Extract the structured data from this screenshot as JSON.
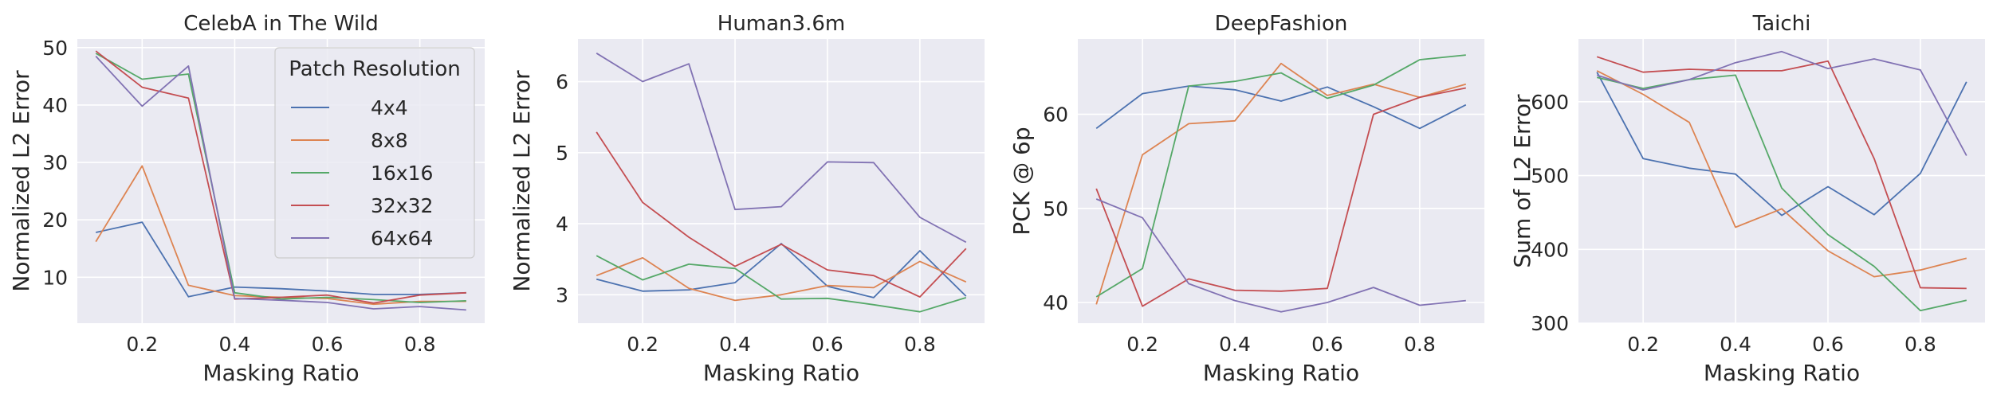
{
  "figure": {
    "legend_location": "top-right (first panel)"
  },
  "palette": {
    "4x4": "#4c72b0",
    "8x8": "#dd8452",
    "16x16": "#55a868",
    "32x32": "#c44e52",
    "64x64": "#8172b3",
    "panel_bg": "#eaeaf2",
    "grid": "#ffffff"
  },
  "chart_data": [
    {
      "type": "line",
      "title": "CelebA in The Wild",
      "xlabel": "Masking Ratio",
      "ylabel": "Normalized L2 Error",
      "xlim": [
        0.06,
        0.94
      ],
      "ylim": [
        2,
        51.5
      ],
      "xticks": [
        0.2,
        0.4,
        0.6,
        0.8
      ],
      "xtick_labels": [
        "0.2",
        "0.4",
        "0.6",
        "0.8"
      ],
      "yticks": [
        10,
        20,
        30,
        40,
        50
      ],
      "ytick_labels": [
        "10",
        "20",
        "30",
        "40",
        "50"
      ],
      "legend": {
        "title": "Patch Resolution",
        "entries": [
          "4x4",
          "8x8",
          "16x16",
          "32x32",
          "64x64"
        ]
      },
      "x": [
        0.1,
        0.2,
        0.3,
        0.4,
        0.5,
        0.6,
        0.7,
        0.8,
        0.9
      ],
      "series": [
        {
          "name": "4x4",
          "values": [
            17.8,
            19.6,
            6.6,
            8.3,
            8.0,
            7.6,
            7.0,
            7.0,
            7.3
          ]
        },
        {
          "name": "8x8",
          "values": [
            16.2,
            29.4,
            8.6,
            6.8,
            6.5,
            6.3,
            5.3,
            5.8,
            5.8
          ]
        },
        {
          "name": "16x16",
          "values": [
            49.0,
            44.5,
            45.4,
            7.3,
            6.2,
            6.5,
            6.1,
            5.6,
            5.9
          ]
        },
        {
          "name": "32x32",
          "values": [
            49.4,
            43.1,
            41.2,
            6.2,
            6.5,
            6.9,
            5.5,
            6.9,
            7.3
          ]
        },
        {
          "name": "64x64",
          "values": [
            48.5,
            39.8,
            46.8,
            6.3,
            6.0,
            5.6,
            4.5,
            4.9,
            4.3
          ]
        }
      ]
    },
    {
      "type": "line",
      "title": "Human3.6m",
      "xlabel": "Masking Ratio",
      "ylabel": "Normalized L2 Error",
      "xlim": [
        0.06,
        0.94
      ],
      "ylim": [
        2.6,
        6.6
      ],
      "xticks": [
        0.2,
        0.4,
        0.6,
        0.8
      ],
      "xtick_labels": [
        "0.2",
        "0.4",
        "0.6",
        "0.8"
      ],
      "yticks": [
        3,
        4,
        5,
        6
      ],
      "ytick_labels": [
        "3",
        "4",
        "5",
        "6"
      ],
      "x": [
        0.1,
        0.2,
        0.3,
        0.4,
        0.5,
        0.6,
        0.7,
        0.8,
        0.9
      ],
      "series": [
        {
          "name": "4x4",
          "values": [
            3.22,
            3.05,
            3.07,
            3.17,
            3.72,
            3.12,
            2.96,
            3.62,
            2.98
          ]
        },
        {
          "name": "8x8",
          "values": [
            3.27,
            3.52,
            3.09,
            2.92,
            3.0,
            3.13,
            3.1,
            3.47,
            3.18
          ]
        },
        {
          "name": "16x16",
          "values": [
            3.55,
            3.21,
            3.43,
            3.37,
            2.94,
            2.95,
            2.86,
            2.76,
            2.96
          ]
        },
        {
          "name": "32x32",
          "values": [
            5.29,
            4.3,
            3.81,
            3.4,
            3.71,
            3.35,
            3.27,
            2.97,
            3.65
          ]
        },
        {
          "name": "64x64",
          "values": [
            6.4,
            6.0,
            6.25,
            4.2,
            4.24,
            4.87,
            4.86,
            4.09,
            3.74
          ]
        }
      ]
    },
    {
      "type": "line",
      "title": "DeepFashion",
      "xlabel": "Masking Ratio",
      "ylabel": "PCK @ 6p",
      "xlim": [
        0.06,
        0.94
      ],
      "ylim": [
        37.8,
        68.0
      ],
      "xticks": [
        0.2,
        0.4,
        0.6,
        0.8
      ],
      "xtick_labels": [
        "0.2",
        "0.4",
        "0.6",
        "0.8"
      ],
      "yticks": [
        40,
        50,
        60
      ],
      "ytick_labels": [
        "40",
        "50",
        "60"
      ],
      "x": [
        0.1,
        0.2,
        0.3,
        0.4,
        0.5,
        0.6,
        0.7,
        0.8,
        0.9
      ],
      "series": [
        {
          "name": "4x4",
          "values": [
            58.5,
            62.2,
            63.0,
            62.6,
            61.4,
            62.9,
            60.8,
            58.5,
            61.0
          ]
        },
        {
          "name": "8x8",
          "values": [
            39.8,
            55.7,
            59.0,
            59.3,
            65.4,
            62.0,
            63.2,
            61.8,
            63.2
          ]
        },
        {
          "name": "16x16",
          "values": [
            40.6,
            43.6,
            63.0,
            63.5,
            64.4,
            61.7,
            63.1,
            65.8,
            66.3
          ]
        },
        {
          "name": "32x32",
          "values": [
            52.1,
            39.6,
            42.5,
            41.3,
            41.2,
            41.5,
            60.0,
            61.8,
            62.8
          ]
        },
        {
          "name": "64x64",
          "values": [
            51.0,
            49.0,
            42.0,
            40.2,
            39.0,
            40.0,
            41.6,
            39.7,
            40.2
          ]
        }
      ]
    },
    {
      "type": "line",
      "title": "Taichi",
      "xlabel": "Masking Ratio",
      "ylabel": "Sum of L2 Error",
      "xlim": [
        0.06,
        0.94
      ],
      "ylim": [
        300,
        685
      ],
      "xticks": [
        0.2,
        0.4,
        0.6,
        0.8
      ],
      "xtick_labels": [
        "0.2",
        "0.4",
        "0.6",
        "0.8"
      ],
      "yticks": [
        300,
        400,
        500,
        600
      ],
      "ytick_labels": [
        "300",
        "400",
        "500",
        "600"
      ],
      "x": [
        0.1,
        0.2,
        0.3,
        0.4,
        0.5,
        0.6,
        0.7,
        0.8,
        0.9
      ],
      "series": [
        {
          "name": "4x4",
          "values": [
            640,
            523,
            510,
            502,
            446,
            485,
            447,
            503,
            627
          ]
        },
        {
          "name": "8x8",
          "values": [
            642,
            610,
            572,
            430,
            455,
            398,
            363,
            372,
            388
          ]
        },
        {
          "name": "16x16",
          "values": [
            633,
            618,
            630,
            636,
            483,
            420,
            377,
            317,
            331
          ]
        },
        {
          "name": "32x32",
          "values": [
            661,
            640,
            644,
            642,
            642,
            655,
            523,
            348,
            347
          ]
        },
        {
          "name": "64x64",
          "values": [
            636,
            616,
            630,
            653,
            668,
            645,
            658,
            643,
            527
          ]
        }
      ]
    }
  ]
}
